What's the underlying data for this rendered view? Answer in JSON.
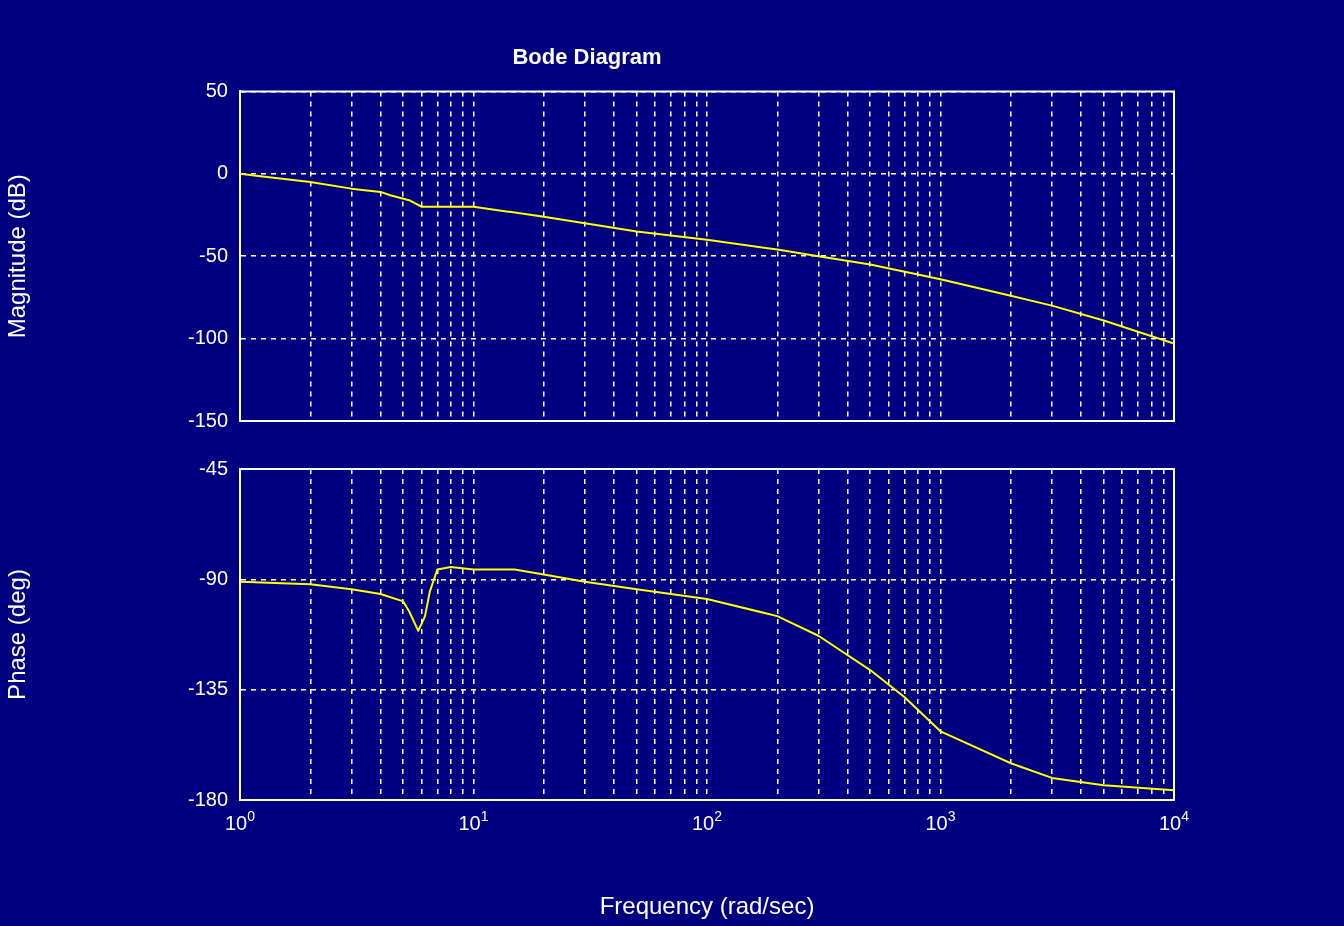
{
  "chart_data": [
    {
      "type": "line",
      "title": "Bode Diagram",
      "ylabel": "Magnitude (dB)",
      "log": "x",
      "grid": true,
      "tick_labels": "y",
      "line_style": "solid",
      "xlim": [
        1,
        10000
      ],
      "ylim": [
        -150,
        50
      ],
      "xticks": [
        1,
        {
          "value": 2,
          "label": null
        },
        {
          "value": 3,
          "label": null
        },
        {
          "value": 4,
          "label": null
        },
        {
          "value": 5,
          "label": null
        },
        {
          "value": 6,
          "label": null
        },
        {
          "value": 7,
          "label": null
        },
        {
          "value": 8,
          "label": null
        },
        {
          "value": 9,
          "label": null
        },
        10,
        {
          "value": 20,
          "label": null
        },
        {
          "value": 30,
          "label": null
        },
        {
          "value": 40,
          "label": null
        },
        {
          "value": 50,
          "label": null
        },
        {
          "value": 60,
          "label": null
        },
        {
          "value": 70,
          "label": null
        },
        {
          "value": 80,
          "label": null
        },
        {
          "value": 90,
          "label": null
        },
        100,
        {
          "value": 200,
          "label": null
        },
        {
          "value": 300,
          "label": null
        },
        {
          "value": 400,
          "label": null
        },
        {
          "value": 500,
          "label": null
        },
        {
          "value": 600,
          "label": null
        },
        {
          "value": 700,
          "label": null
        },
        {
          "value": 800,
          "label": null
        },
        {
          "value": 900,
          "label": null
        },
        1000,
        {
          "value": 2000,
          "label": null
        },
        {
          "value": 3000,
          "label": null
        },
        {
          "value": 4000,
          "label": null
        },
        {
          "value": 5000,
          "label": null
        },
        {
          "value": 6000,
          "label": null
        },
        {
          "value": 7000,
          "label": null
        },
        {
          "value": 8000,
          "label": null
        },
        {
          "value": 9000,
          "label": null
        },
        10000
      ],
      "yticks": [
        -150,
        -100,
        -50,
        0,
        50
      ],
      "x": [
        1,
        2,
        3,
        4,
        4.4,
        5.3,
        6,
        10,
        20,
        30,
        50,
        100,
        200,
        300,
        500,
        1000,
        2000,
        3000,
        5000,
        10000
      ],
      "series": [
        {
          "color": "#ffff00",
          "values": [
            0,
            -5,
            -9,
            -11,
            -13,
            -16,
            -20,
            -20,
            -26,
            -30,
            -35,
            -40,
            -46,
            -50,
            -55,
            -64,
            -74,
            -80,
            -89,
            -103
          ]
        }
      ]
    },
    {
      "type": "line",
      "xlabel": "Frequency (rad/sec)",
      "ylabel": "Phase (deg)",
      "log": "x",
      "grid": true,
      "line_style": "solid",
      "xlim": [
        1,
        10000
      ],
      "ylim": [
        -180,
        -45
      ],
      "xticks": [
        {
          "value": 1,
          "label": "10$^{0}$"
        },
        {
          "value": 2,
          "label": null
        },
        {
          "value": 3,
          "label": null
        },
        {
          "value": 4,
          "label": null
        },
        {
          "value": 5,
          "label": null
        },
        {
          "value": 6,
          "label": null
        },
        {
          "value": 7,
          "label": null
        },
        {
          "value": 8,
          "label": null
        },
        {
          "value": 9,
          "label": null
        },
        {
          "value": 10,
          "label": "10$^{1}$"
        },
        {
          "value": 20,
          "label": null
        },
        {
          "value": 30,
          "label": null
        },
        {
          "value": 40,
          "label": null
        },
        {
          "value": 50,
          "label": null
        },
        {
          "value": 60,
          "label": null
        },
        {
          "value": 70,
          "label": null
        },
        {
          "value": 80,
          "label": null
        },
        {
          "value": 90,
          "label": null
        },
        {
          "value": 100,
          "label": "10$^{2}$"
        },
        {
          "value": 200,
          "label": null
        },
        {
          "value": 300,
          "label": null
        },
        {
          "value": 400,
          "label": null
        },
        {
          "value": 500,
          "label": null
        },
        {
          "value": 600,
          "label": null
        },
        {
          "value": 700,
          "label": null
        },
        {
          "value": 800,
          "label": null
        },
        {
          "value": 900,
          "label": null
        },
        {
          "value": 1000,
          "label": "10$^{3}$"
        },
        {
          "value": 2000,
          "label": null
        },
        {
          "value": 3000,
          "label": null
        },
        {
          "value": 4000,
          "label": null
        },
        {
          "value": 5000,
          "label": null
        },
        {
          "value": 6000,
          "label": null
        },
        {
          "value": 7000,
          "label": null
        },
        {
          "value": 8000,
          "label": null
        },
        {
          "value": 9000,
          "label": null
        },
        {
          "value": 10000,
          "label": "10$^{4}$"
        }
      ],
      "yticks": [
        -180,
        -135,
        -90,
        -45
      ],
      "x": [
        1,
        2,
        3,
        4,
        5,
        5.3,
        5.8,
        6.2,
        6.5,
        7,
        8,
        10,
        15,
        20,
        30,
        50,
        100,
        200,
        300,
        500,
        700,
        1000,
        2000,
        3000,
        5000,
        10000
      ],
      "series": [
        {
          "color": "#ffff00",
          "values": [
            -91,
            -92,
            -94,
            -96,
            -99,
            -103,
            -111,
            -105,
            -95,
            -86,
            -85,
            -86,
            -86,
            -88,
            -91,
            -94,
            -98,
            -105,
            -113,
            -127,
            -138,
            -152,
            -165,
            -171,
            -174,
            -176
          ]
        }
      ]
    }
  ]
}
